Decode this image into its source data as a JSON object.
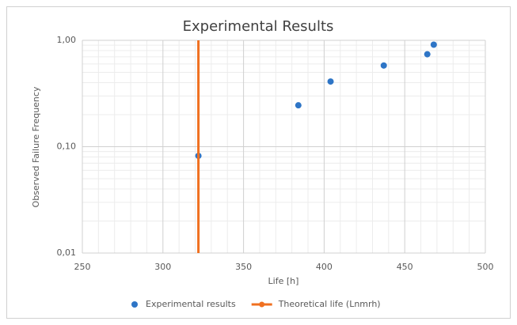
{
  "chart_data": {
    "type": "scatter",
    "title": "Experimental Results",
    "x_label": "Life [h]",
    "y_label": "Observed Failure Frequency",
    "xlim": [
      250,
      500
    ],
    "xticks": [
      250,
      300,
      350,
      400,
      450,
      500
    ],
    "ylim": [
      0.01,
      1
    ],
    "y_scale": "log",
    "yticks": [
      {
        "value": 0.01,
        "label": "0,01"
      },
      {
        "value": 0.1,
        "label": "0,10"
      },
      {
        "value": 1,
        "label": "1,00"
      }
    ],
    "grid": true,
    "minor_grid": true,
    "legend": "bottom",
    "series": [
      {
        "name": "Experimental results",
        "type": "scatter",
        "color": "#2e75c6",
        "x": [
          322,
          384,
          404,
          437,
          464,
          468
        ],
        "values": [
          0.082,
          0.245,
          0.41,
          0.58,
          0.74,
          0.91
        ]
      },
      {
        "name": "Theoretical life (Lnmrh)",
        "type": "line",
        "color": "#f07020",
        "x": [
          322,
          322
        ],
        "values": [
          0.01,
          1
        ]
      }
    ]
  }
}
